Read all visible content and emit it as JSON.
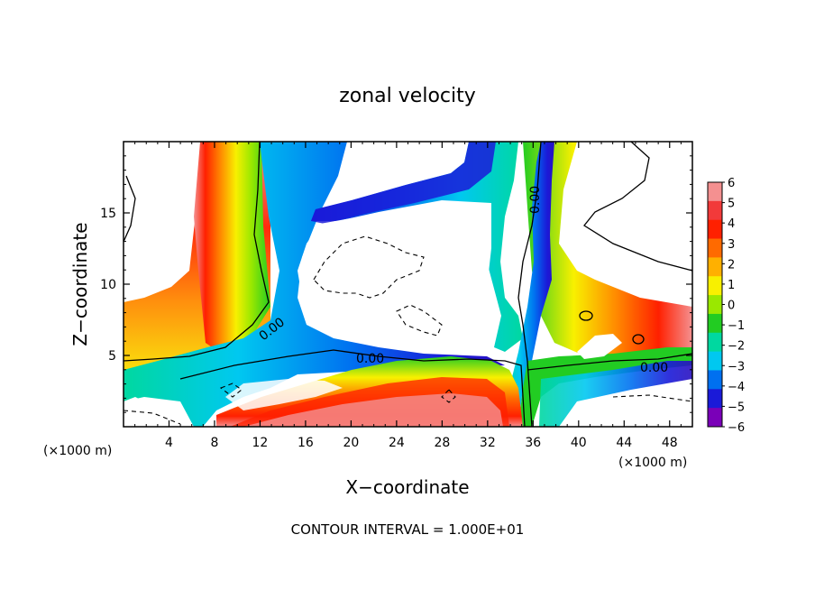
{
  "chart_data": {
    "type": "heatmap",
    "title": "zonal velocity",
    "xlabel": "X−coordinate",
    "ylabel": "Z−coordinate",
    "x_unit_left": "(×1000 m)",
    "x_unit_right": "(×1000 m)",
    "xlim": [
      0,
      50
    ],
    "ylim": [
      0,
      20
    ],
    "xticks": [
      "4",
      "8",
      "12",
      "16",
      "20",
      "24",
      "28",
      "32",
      "36",
      "40",
      "44",
      "48"
    ],
    "yticks": [
      "5",
      "10",
      "15"
    ],
    "footer": "CONTOUR INTERVAL = 1.000E+01",
    "colorbar": {
      "labels": [
        "6",
        "5",
        "4",
        "3",
        "2",
        "1",
        "0",
        "−1",
        "−2",
        "−3",
        "−4",
        "−5",
        "−6"
      ],
      "colors": [
        "#f49090",
        "#f23a3a",
        "#ff2000",
        "#ff6a00",
        "#ffb000",
        "#f8f000",
        "#9ae800",
        "#22cc22",
        "#00d8a0",
        "#00c8f0",
        "#0070f0",
        "#1a1ad8",
        "#7a00b8"
      ]
    },
    "contour_labels": [
      "0.00",
      "0.00",
      "0.00",
      "0.00"
    ],
    "features": [
      {
        "kind": "positive_jet",
        "x": [
          8,
          13
        ],
        "z": [
          5,
          20
        ]
      },
      {
        "kind": "positive_jet",
        "x": [
          36,
          40
        ],
        "z": [
          8,
          20
        ]
      },
      {
        "kind": "negative_jet",
        "x": [
          12,
          19
        ],
        "z": [
          4,
          20
        ]
      },
      {
        "kind": "negative_jet",
        "x": [
          32,
          37
        ],
        "z": [
          4,
          20
        ]
      },
      {
        "kind": "positive_shear_layer",
        "x": [
          0,
          50
        ],
        "z": [
          0,
          8
        ]
      }
    ]
  }
}
